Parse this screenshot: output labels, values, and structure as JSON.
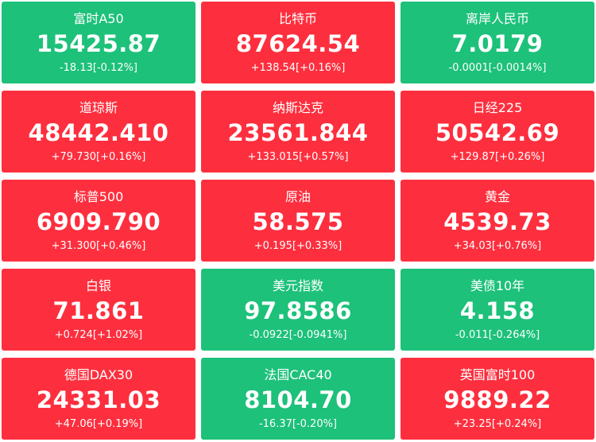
{
  "colors": {
    "up": "#fd2f3e",
    "down": "#1dc17a",
    "text": "#ffffff"
  },
  "tiles": [
    {
      "name": "富时A50",
      "price": "15425.87",
      "change": "-18.13[-0.12%]",
      "trend": "down"
    },
    {
      "name": "比特币",
      "price": "87624.54",
      "change": "+138.54[+0.16%]",
      "trend": "up"
    },
    {
      "name": "离岸人民币",
      "price": "7.0179",
      "change": "-0.0001[-0.0014%]",
      "trend": "down"
    },
    {
      "name": "道琼斯",
      "price": "48442.410",
      "change": "+79.730[+0.16%]",
      "trend": "up"
    },
    {
      "name": "纳斯达克",
      "price": "23561.844",
      "change": "+133.015[+0.57%]",
      "trend": "up"
    },
    {
      "name": "日经225",
      "price": "50542.69",
      "change": "+129.87[+0.26%]",
      "trend": "up"
    },
    {
      "name": "标普500",
      "price": "6909.790",
      "change": "+31.300[+0.46%]",
      "trend": "up"
    },
    {
      "name": "原油",
      "price": "58.575",
      "change": "+0.195[+0.33%]",
      "trend": "up"
    },
    {
      "name": "黄金",
      "price": "4539.73",
      "change": "+34.03[+0.76%]",
      "trend": "up"
    },
    {
      "name": "白银",
      "price": "71.861",
      "change": "+0.724[+1.02%]",
      "trend": "up"
    },
    {
      "name": "美元指数",
      "price": "97.8586",
      "change": "-0.0922[-0.0941%]",
      "trend": "down"
    },
    {
      "name": "美债10年",
      "price": "4.158",
      "change": "-0.011[-0.264%]",
      "trend": "down"
    },
    {
      "name": "德国DAX30",
      "price": "24331.03",
      "change": "+47.06[+0.19%]",
      "trend": "up"
    },
    {
      "name": "法国CAC40",
      "price": "8104.70",
      "change": "-16.37[-0.20%]",
      "trend": "down"
    },
    {
      "name": "英国富时100",
      "price": "9889.22",
      "change": "+23.25[+0.24%]",
      "trend": "up"
    }
  ]
}
